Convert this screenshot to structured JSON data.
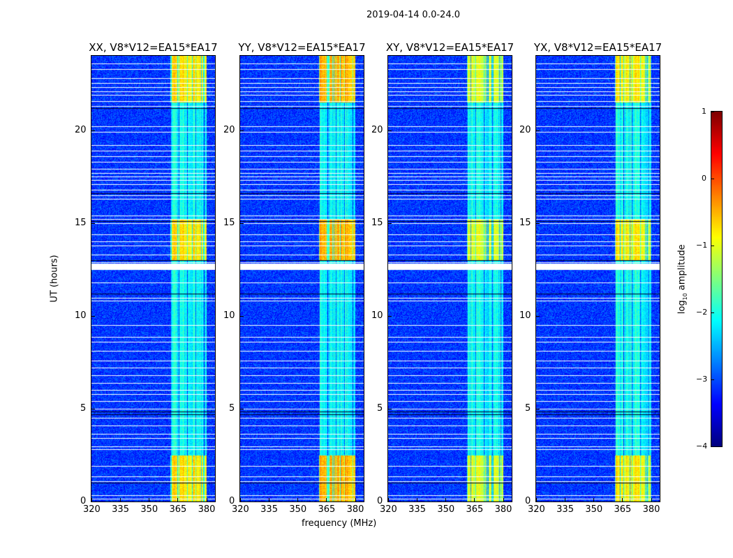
{
  "chart_data": {
    "type": "heatmap",
    "suptitle": "2019-04-14 0.0-24.0",
    "xlabel": "frequency (MHz)",
    "ylabel": "UT (hours)",
    "xlim": [
      320,
      384.5
    ],
    "ylim": [
      0,
      24
    ],
    "xticks": [
      "320",
      "335",
      "350",
      "365",
      "380"
    ],
    "xtick_values": [
      320,
      335,
      350,
      365,
      380
    ],
    "yticks": [
      "0",
      "5",
      "10",
      "15",
      "20"
    ],
    "ytick_values": [
      0,
      5,
      10,
      15,
      20
    ],
    "panels": [
      {
        "title": "XX, V8*V12=EA15*EA17",
        "band_level": -1.3
      },
      {
        "title": "YY, V8*V12=EA15*EA17",
        "band_level": -1.0
      },
      {
        "title": "XY, V8*V12=EA15*EA17",
        "band_level": -1.6
      },
      {
        "title": "YX, V8*V12=EA15*EA17",
        "band_level": -1.4
      }
    ],
    "background_level": -3.1,
    "rfi_band_mhz": [
      361,
      380
    ],
    "strong_periods_hours": [
      [
        0,
        2.5
      ],
      [
        13,
        15.2
      ],
      [
        21.5,
        24
      ]
    ],
    "flagged_hours": [
      0.15,
      0.35,
      1.1,
      1.35,
      1.9,
      2.8,
      2.95,
      3.4,
      3.65,
      4.1,
      4.5,
      5.0,
      5.4,
      5.8,
      6.0,
      6.4,
      6.8,
      7.2,
      7.6,
      8.1,
      8.6,
      8.85,
      9.5,
      10.8,
      10.95,
      11.8,
      12.6,
      12.7,
      12.9,
      13.3,
      13.8,
      14.0,
      14.4,
      15.0,
      15.2,
      15.4,
      16.3,
      16.5,
      16.8,
      17.1,
      17.3,
      17.5,
      17.7,
      17.9,
      18.3,
      18.6,
      18.9,
      19.2,
      19.9,
      20.2,
      21.3,
      21.55,
      21.9,
      22.1,
      22.3,
      22.55,
      22.8,
      23.3,
      23.6
    ],
    "dark_hours": [
      1.0,
      4.7,
      4.85,
      11.2,
      13.0,
      15.1,
      16.6,
      21.2
    ],
    "colorbar": {
      "label": "log10 amplitude",
      "label_main": "log",
      "label_sub": "10",
      "label_rest": " amplitude",
      "min": -4,
      "max": 1,
      "ticks": [
        "1",
        "0",
        "−1",
        "−2",
        "−3",
        "−4"
      ],
      "tick_values": [
        1,
        0,
        -1,
        -2,
        -3,
        -4
      ],
      "colormap": "jet"
    }
  }
}
